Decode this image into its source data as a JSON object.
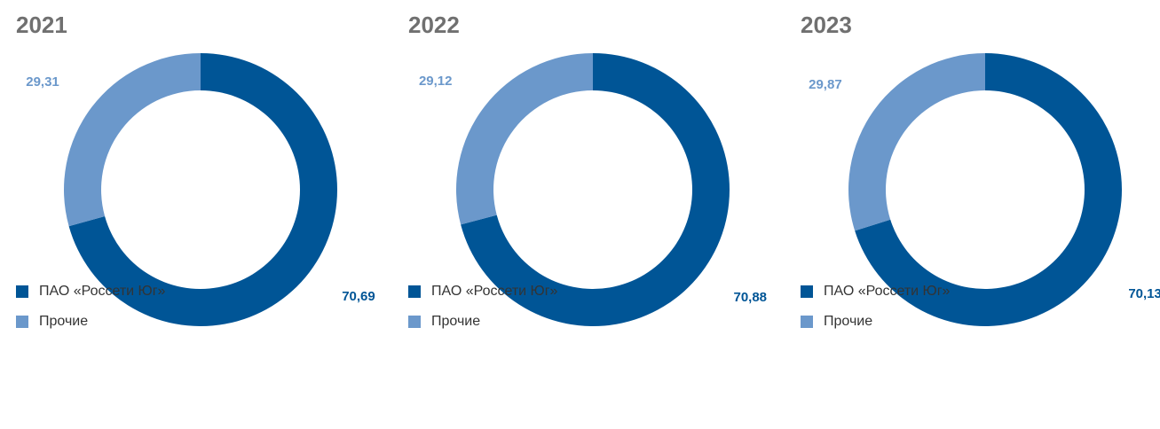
{
  "chart_data": [
    {
      "type": "donut",
      "title": "2021",
      "categories": [
        "ПАО «Россети Юг»",
        "Прочие"
      ],
      "values": [
        70.69,
        29.31
      ],
      "value_labels": [
        "70,69",
        "29,31"
      ],
      "colors": [
        "#005596",
        "#6b98cb"
      ]
    },
    {
      "type": "donut",
      "title": "2022",
      "categories": [
        "ПАО «Россети Юг»",
        "Прочие"
      ],
      "values": [
        70.88,
        29.12
      ],
      "value_labels": [
        "70,88",
        "29,12"
      ],
      "colors": [
        "#005596",
        "#6b98cb"
      ]
    },
    {
      "type": "donut",
      "title": "2023",
      "categories": [
        "ПАО «Россети Юг»",
        "Прочие"
      ],
      "values": [
        70.13,
        29.87
      ],
      "value_labels": [
        "70,13",
        "29,87"
      ],
      "colors": [
        "#005596",
        "#6b98cb"
      ]
    }
  ]
}
